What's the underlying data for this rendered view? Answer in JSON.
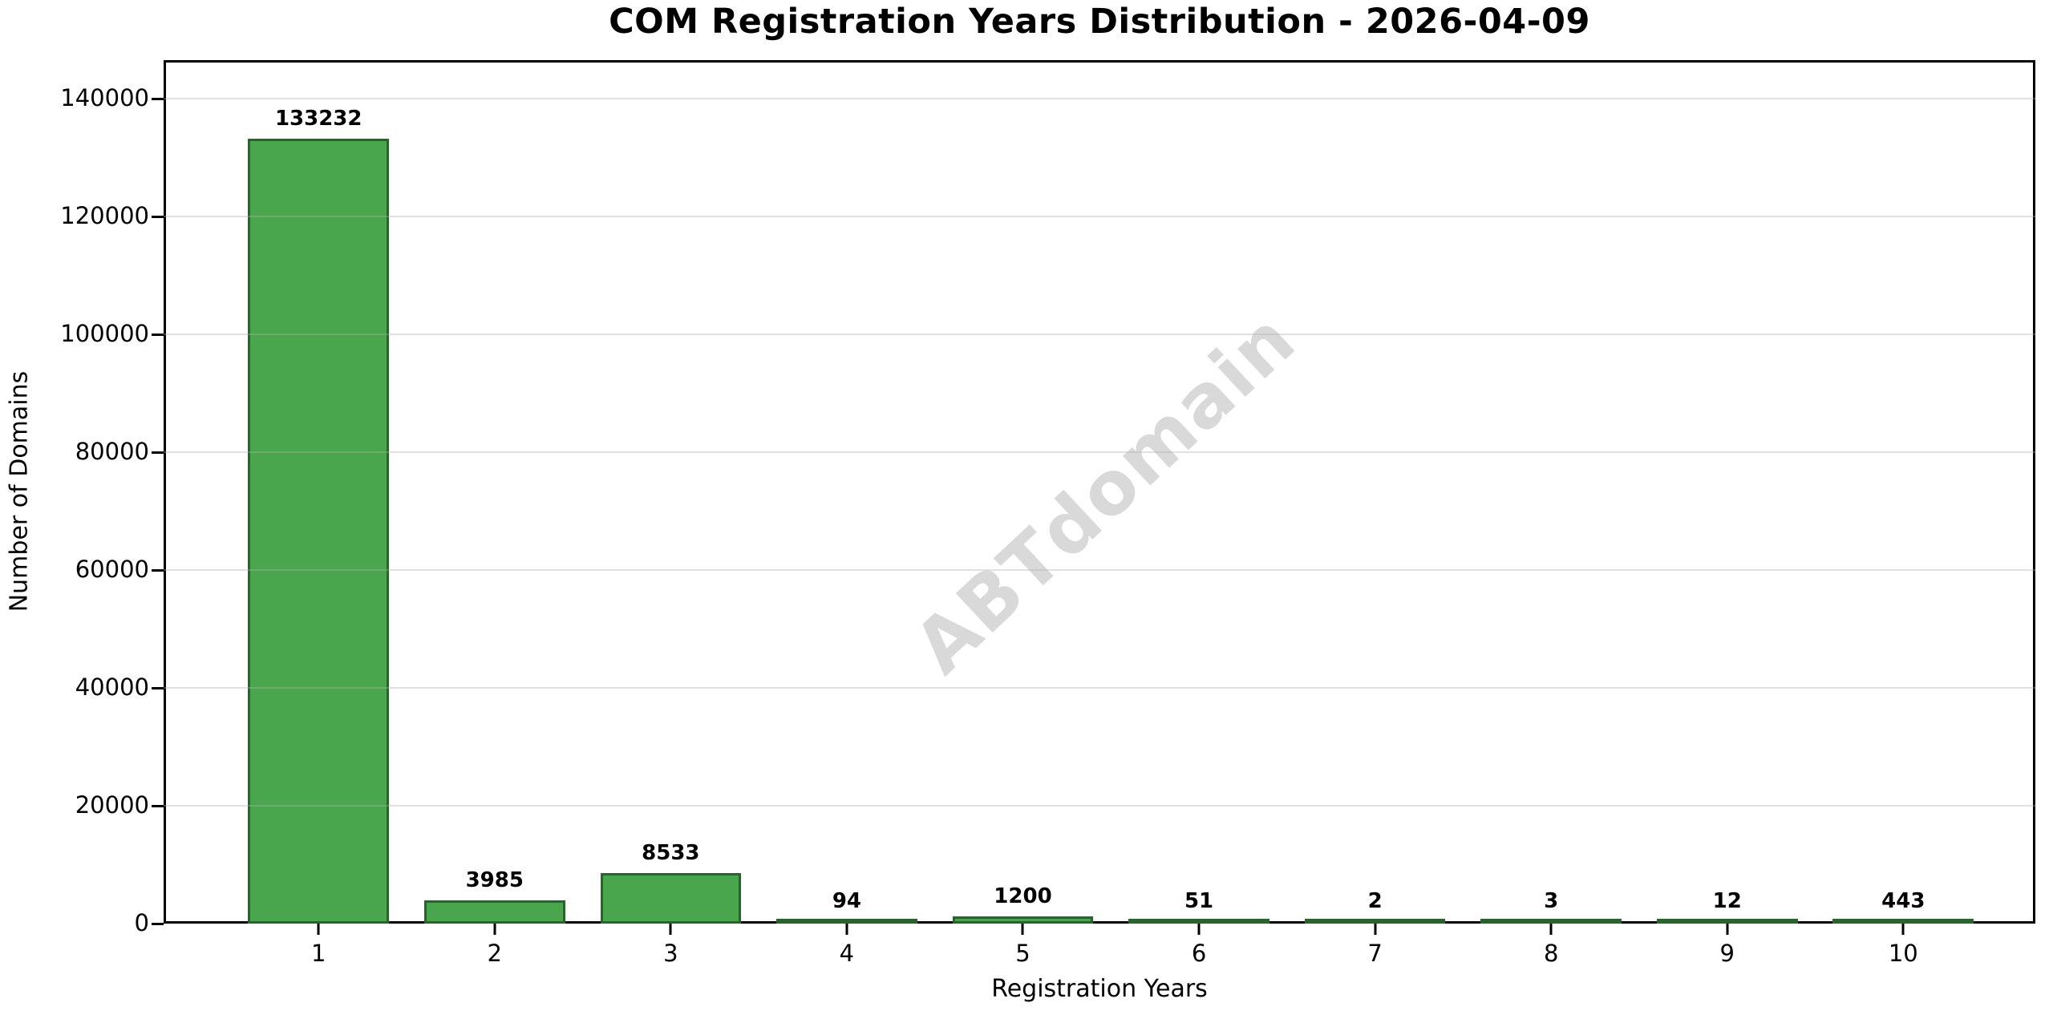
{
  "chart_data": {
    "type": "bar",
    "title": "COM Registration Years Distribution - 2026-04-09",
    "xlabel": "Registration Years",
    "ylabel": "Number of Domains",
    "categories": [
      "1",
      "2",
      "3",
      "4",
      "5",
      "6",
      "7",
      "8",
      "9",
      "10"
    ],
    "values": [
      133232,
      3985,
      8533,
      94,
      1200,
      51,
      2,
      3,
      12,
      443
    ],
    "bar_value_labels": [
      "133232",
      "3985",
      "8533",
      "94",
      "1200",
      "51",
      "2",
      "3",
      "12",
      "443"
    ],
    "ylim": [
      0,
      146555
    ],
    "yticks": [
      0,
      20000,
      40000,
      60000,
      80000,
      100000,
      120000,
      140000
    ],
    "ytick_labels": [
      "0",
      "20000",
      "40000",
      "60000",
      "80000",
      "100000",
      "120000",
      "140000"
    ],
    "xlim": [
      0.12,
      10.75
    ],
    "bar_width_data_units": 0.8,
    "grid": "horizontal",
    "legend": "none",
    "bar_color": "#4aa64c",
    "bar_edge_color": "#27662a",
    "watermark": "ABTdomain",
    "watermark_color": "#d9d9d9",
    "watermark_rotation_deg": -43
  }
}
